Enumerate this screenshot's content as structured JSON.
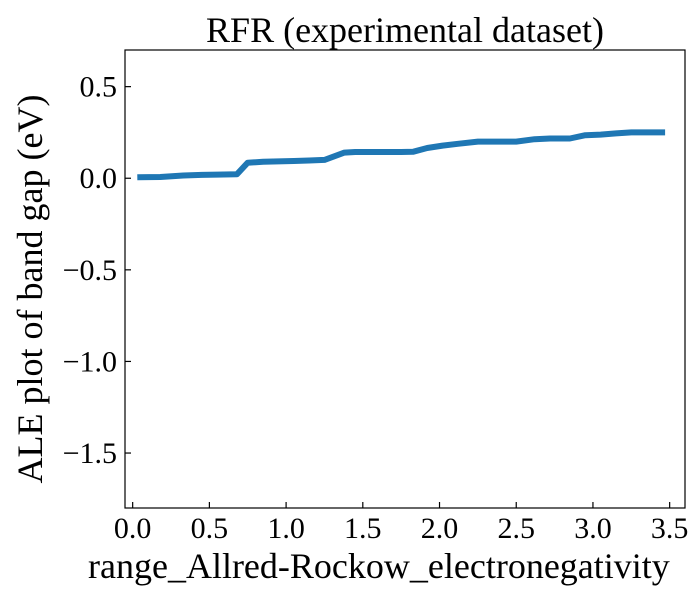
{
  "chart_data": {
    "type": "line",
    "title": "RFR (experimental dataset)",
    "xlabel": "range_Allred-Rockow_electronegativity",
    "ylabel": "ALE plot of band gap (eV)",
    "xlim": [
      -0.05,
      3.6
    ],
    "ylim": [
      -1.8,
      0.7
    ],
    "xticks": [
      0.0,
      0.5,
      1.0,
      1.5,
      2.0,
      2.5,
      3.0,
      3.5
    ],
    "xtick_labels": [
      "0.0",
      "0.5",
      "1.0",
      "1.5",
      "2.0",
      "2.5",
      "3.0",
      "3.5"
    ],
    "yticks": [
      0.5,
      0.0,
      -0.5,
      -1.0,
      -1.5
    ],
    "ytick_labels": [
      "0.5",
      "0.0",
      "−0.5",
      "−1.0",
      "−1.5"
    ],
    "grid": false,
    "legend": "none",
    "series": [
      {
        "color": "#1f77b4",
        "x": [
          0.03,
          0.18,
          0.33,
          0.45,
          0.55,
          0.68,
          0.75,
          0.85,
          0.95,
          1.05,
          1.15,
          1.25,
          1.38,
          1.45,
          1.55,
          1.65,
          1.75,
          1.83,
          1.92,
          2.02,
          2.12,
          2.25,
          2.38,
          2.5,
          2.62,
          2.72,
          2.85,
          2.95,
          3.05,
          3.15,
          3.25,
          3.35,
          3.47
        ],
        "y": [
          0.005,
          0.007,
          0.015,
          0.018,
          0.02,
          0.022,
          0.085,
          0.09,
          0.092,
          0.094,
          0.097,
          0.1,
          0.14,
          0.143,
          0.143,
          0.143,
          0.143,
          0.145,
          0.165,
          0.178,
          0.188,
          0.2,
          0.2,
          0.2,
          0.213,
          0.217,
          0.217,
          0.235,
          0.238,
          0.245,
          0.25,
          0.25,
          0.25
        ]
      }
    ]
  }
}
